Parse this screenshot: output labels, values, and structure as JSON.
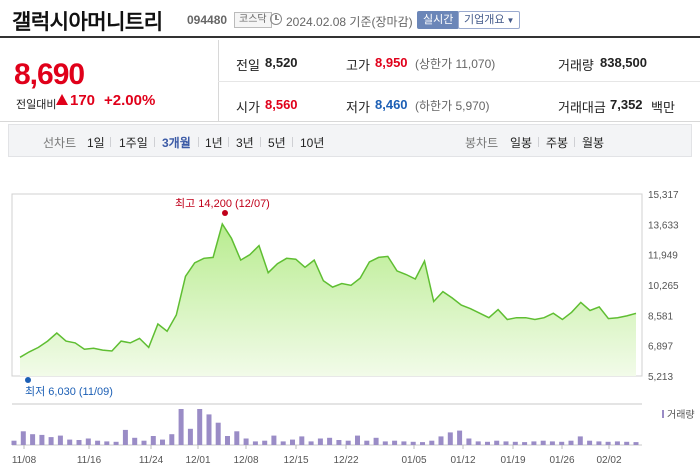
{
  "header": {
    "title": "갤럭시아머니트리",
    "code": "094480",
    "market": "코스닥",
    "date": "2024.02.08",
    "date_suffix": "기준(장마감)",
    "realtime_label": "실시간",
    "company_label": "기업개요"
  },
  "summary": {
    "price": "8,690",
    "change_label": "전일대비",
    "change_value": "170",
    "change_pct": "+2.00%",
    "prev_close_label": "전일",
    "prev_close": "8,520",
    "open_label": "시가",
    "open": "8,560",
    "high_label": "고가",
    "high": "8,950",
    "upper_limit": "(상한가 11,070)",
    "low_label": "저가",
    "low": "8,460",
    "lower_limit": "(하한가 5,970)",
    "volume_label": "거래량",
    "volume": "838,500",
    "amount_label": "거래대금",
    "amount": "7,352",
    "amount_unit": "백만",
    "colors": {
      "up": "#e0001a",
      "down": "#1c5fb5"
    }
  },
  "tabs": {
    "line_group_label": "선차트",
    "line_periods": [
      "1일",
      "1주일",
      "3개월",
      "1년",
      "3년",
      "5년",
      "10년"
    ],
    "active_period": "3개월",
    "candle_group_label": "봉차트",
    "candle_periods": [
      "일봉",
      "주봉",
      "월봉"
    ]
  },
  "chart_data": {
    "type": "area",
    "y_ticks": [
      "15,317",
      "13,633",
      "11,949",
      "10,265",
      "8,581",
      "6,897",
      "5,213"
    ],
    "ylim": [
      5213,
      15317
    ],
    "x_ticks": [
      "11/08",
      "11/16",
      "11/24",
      "12/01",
      "12/08",
      "12/15",
      "12/22",
      "01/05",
      "01/12",
      "01/19",
      "01/26",
      "02/02"
    ],
    "annotations": {
      "high": "최고 14,200 (12/07)",
      "low": "최저 6,030 (11/09)"
    },
    "values": [
      6250,
      6550,
      6800,
      7150,
      7600,
      7150,
      7050,
      6700,
      6750,
      6650,
      6600,
      7150,
      7050,
      7300,
      6800,
      8100,
      7700,
      8600,
      10750,
      11500,
      11750,
      11800,
      13650,
      12850,
      11650,
      11950,
      12450,
      10950,
      11450,
      11750,
      11700,
      11250,
      11650,
      10500,
      10150,
      10350,
      10250,
      10650,
      11550,
      11800,
      11850,
      11050,
      10850,
      10600,
      11600,
      9350,
      9900,
      9550,
      9150,
      8950,
      8700,
      8450,
      8900,
      8350,
      8450,
      8450,
      8350,
      8450,
      8700,
      8350,
      8750,
      9300,
      8850,
      9050,
      8400,
      8450,
      8550,
      8690
    ],
    "volume_legend": "거래량",
    "volume": [
      12,
      38,
      30,
      28,
      22,
      26,
      15,
      14,
      18,
      12,
      10,
      9,
      42,
      20,
      12,
      25,
      15,
      30,
      100,
      45,
      100,
      85,
      62,
      25,
      38,
      18,
      10,
      12,
      26,
      10,
      15,
      24,
      10,
      18,
      20,
      14,
      12,
      26,
      12,
      20,
      10,
      12,
      10,
      9,
      8,
      12,
      24,
      35,
      40,
      18,
      10,
      9,
      12,
      10,
      9,
      8,
      10,
      12,
      10,
      9,
      12,
      24,
      12,
      10,
      9,
      10,
      9,
      8
    ],
    "colors": {
      "line": "#5fbe32",
      "fill_top": "#b8ec8f",
      "fill_bottom": "#f2fbe9",
      "volume": "#9a8cc6"
    }
  }
}
